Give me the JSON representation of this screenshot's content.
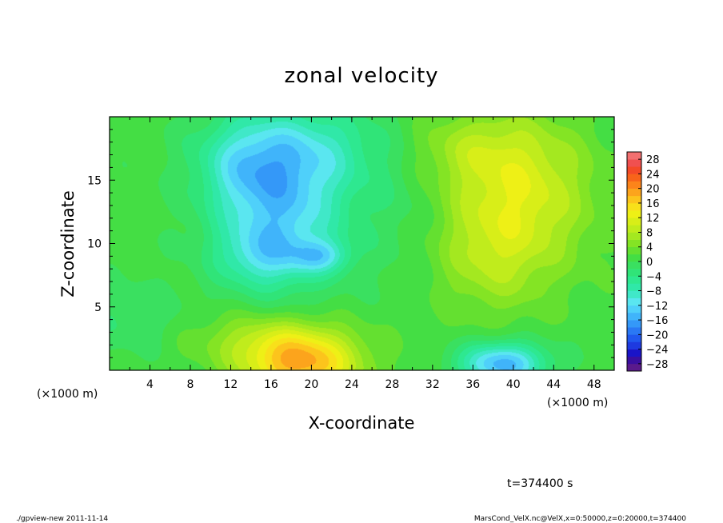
{
  "chart_data": {
    "type": "heatmap",
    "title": "zonal velocity",
    "xlabel": "X-coordinate",
    "ylabel": "Z-coordinate",
    "x_unit_label": "(×1000 m)",
    "x_unit_label_right": "(×1000 m)",
    "xlim": [
      0,
      50
    ],
    "ylim": [
      0,
      20
    ],
    "x_ticks": [
      4,
      8,
      12,
      16,
      20,
      24,
      28,
      32,
      36,
      40,
      44,
      48
    ],
    "x_tick_labels": [
      "4",
      "8",
      "12",
      "16",
      "20",
      "24",
      "28",
      "32",
      "36",
      "40",
      "44",
      "48"
    ],
    "y_ticks": [
      5,
      10,
      15
    ],
    "y_tick_labels": [
      "5",
      "10",
      "15"
    ],
    "colorbar": {
      "levels": [
        -30,
        -28,
        -26,
        -24,
        -22,
        -20,
        -18,
        -16,
        -14,
        -12,
        -10,
        -8,
        -6,
        -4,
        -2,
        0,
        2,
        4,
        6,
        8,
        10,
        12,
        14,
        16,
        18,
        20,
        22,
        24,
        26,
        28,
        30
      ],
      "tick_values": [
        28,
        24,
        20,
        16,
        12,
        8,
        4,
        0,
        -4,
        -8,
        -12,
        -16,
        -20,
        -24,
        -28
      ],
      "tick_labels": [
        "28",
        "24",
        "20",
        "16",
        "12",
        "8",
        "4",
        "0",
        "−4",
        "−8",
        "−12",
        "−16",
        "−20",
        "−24",
        "−28"
      ],
      "colors": [
        "#5a1a8c",
        "#3a0fa0",
        "#1a14c8",
        "#1e3ae0",
        "#2058ee",
        "#2a78f4",
        "#3498f8",
        "#40b4fa",
        "#4fd0fa",
        "#5ae6f0",
        "#40e8c8",
        "#30e8a8",
        "#2ee890",
        "#30e478",
        "#3ae060",
        "#44de44",
        "#64e030",
        "#84e424",
        "#a4e820",
        "#c0ec1c",
        "#d8ee18",
        "#eef016",
        "#f8e01a",
        "#fcc41c",
        "#fca41c",
        "#fc841a",
        "#f8641a",
        "#f44a28",
        "#f05050",
        "#f27070",
        "#f49494"
      ]
    },
    "field": {
      "background": 1,
      "features": [
        {
          "x": 17,
          "z": 12.5,
          "sx": 4.5,
          "sz": 4,
          "amp": -13
        },
        {
          "x": 15,
          "z": 9,
          "sx": 3,
          "sz": 1.6,
          "amp": -6
        },
        {
          "x": 21,
          "z": 9,
          "sx": 2,
          "sz": 0.9,
          "amp": -8
        },
        {
          "x": 19,
          "z": 17.5,
          "sx": 6,
          "sz": 2.5,
          "amp": -8
        },
        {
          "x": 13,
          "z": 16,
          "sx": 3,
          "sz": 2.5,
          "amp": -5
        },
        {
          "x": 19,
          "z": 0.5,
          "sx": 4,
          "sz": 1.8,
          "amp": 17
        },
        {
          "x": 15,
          "z": 2.5,
          "sx": 5,
          "sz": 1.5,
          "amp": 5
        },
        {
          "x": 39,
          "z": 0.5,
          "sx": 3,
          "sz": 1.2,
          "amp": -16
        },
        {
          "x": 40.5,
          "z": 14,
          "sx": 5,
          "sz": 4,
          "amp": 10
        },
        {
          "x": 38,
          "z": 8.5,
          "sx": 4,
          "sz": 3,
          "amp": 5
        },
        {
          "x": 35,
          "z": 17.5,
          "sx": 5,
          "sz": 2,
          "amp": 4
        },
        {
          "x": 2,
          "z": 4,
          "sx": 4,
          "sz": 2,
          "amp": -3
        },
        {
          "x": 29,
          "z": 13,
          "sx": 3,
          "sz": 4,
          "amp": -2
        }
      ]
    }
  },
  "annotation": {
    "time": "t=374400 s"
  },
  "footer": {
    "left": "./gpview-new  2011-11-14",
    "right": "MarsCond_VelX.nc@VelX,x=0:50000,z=0:20000,t=374400"
  }
}
